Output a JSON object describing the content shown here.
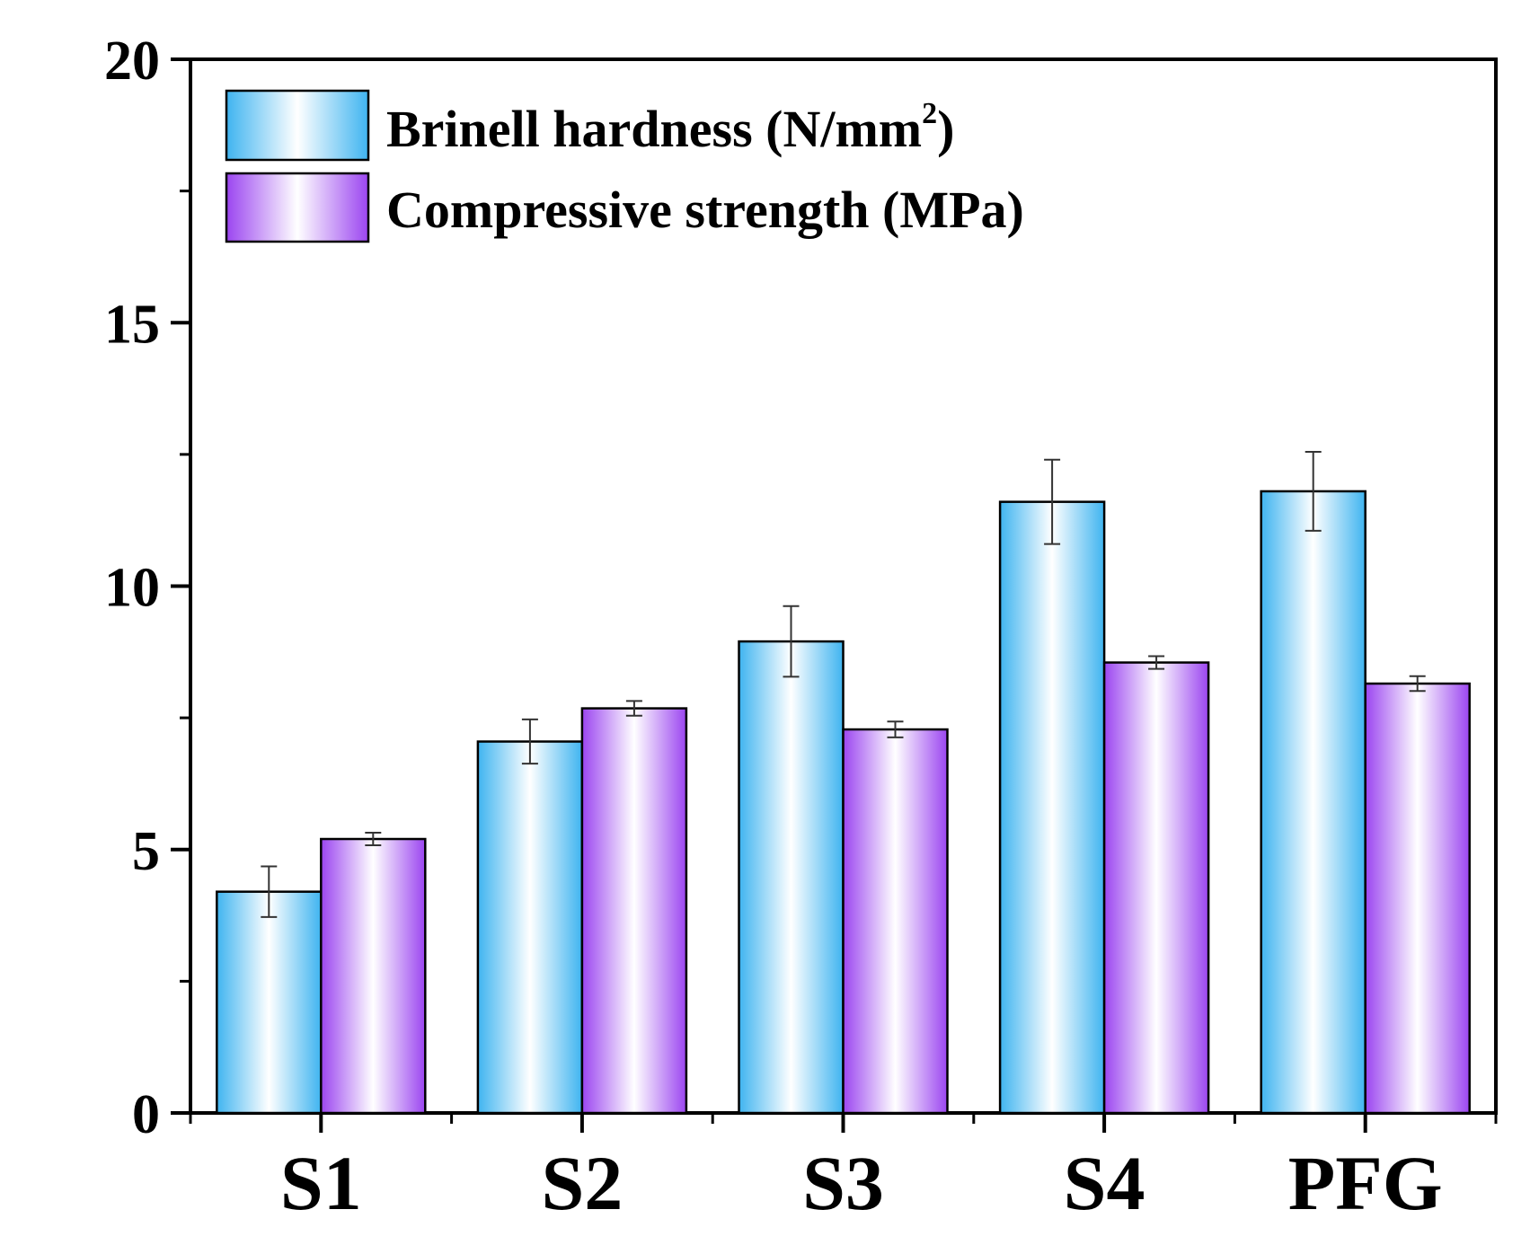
{
  "chart_data": {
    "type": "bar",
    "title": "",
    "xlabel": "",
    "ylabel": "",
    "categories": [
      "S1",
      "S2",
      "S3",
      "S4",
      "PFG"
    ],
    "ylim": [
      0,
      20
    ],
    "yticks": [
      0,
      5,
      10,
      15,
      20
    ],
    "series": [
      {
        "name": "Brinell hardness (N/mm2)",
        "legend_main": "Brinell hardness (N/mm",
        "legend_sup": "2",
        "legend_end": ")",
        "values": [
          4.2,
          7.05,
          8.95,
          11.6,
          11.8
        ],
        "errors": [
          0.48,
          0.42,
          0.67,
          0.8,
          0.75
        ],
        "color": "#3fb4f0"
      },
      {
        "name": "Compressive strength (MPa)",
        "legend_main": "Compressive strength (MPa)",
        "legend_sup": "",
        "legend_end": "",
        "values": [
          5.2,
          7.68,
          7.28,
          8.55,
          8.15
        ],
        "errors": [
          0.12,
          0.14,
          0.15,
          0.12,
          0.14
        ],
        "color": "#9b45f0"
      }
    ],
    "legend_position": "top-left"
  }
}
